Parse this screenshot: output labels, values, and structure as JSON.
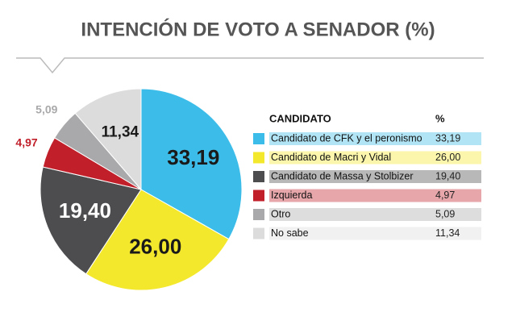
{
  "chart_data": {
    "type": "pie",
    "title": "INTENCIÓN DE VOTO A SENADOR (%)",
    "legend_title": "CANDIDATO",
    "value_header": "%",
    "categories": [
      "Candidato de CFK y el peronismo",
      "Candidato de Macri y Vidal",
      "Candidato de Massa y Stolbizer",
      "Izquierda",
      "Otro",
      "No sabe"
    ],
    "values": [
      33.19,
      26.0,
      19.4,
      4.97,
      5.09,
      11.34
    ],
    "value_labels": [
      "33,19",
      "26,00",
      "19,40",
      "4,97",
      "5,09",
      "11,34"
    ],
    "colors": [
      "#3cbde9",
      "#f4e82c",
      "#4d4d4f",
      "#c1202b",
      "#a9a9ab",
      "#dcdcdc"
    ]
  }
}
